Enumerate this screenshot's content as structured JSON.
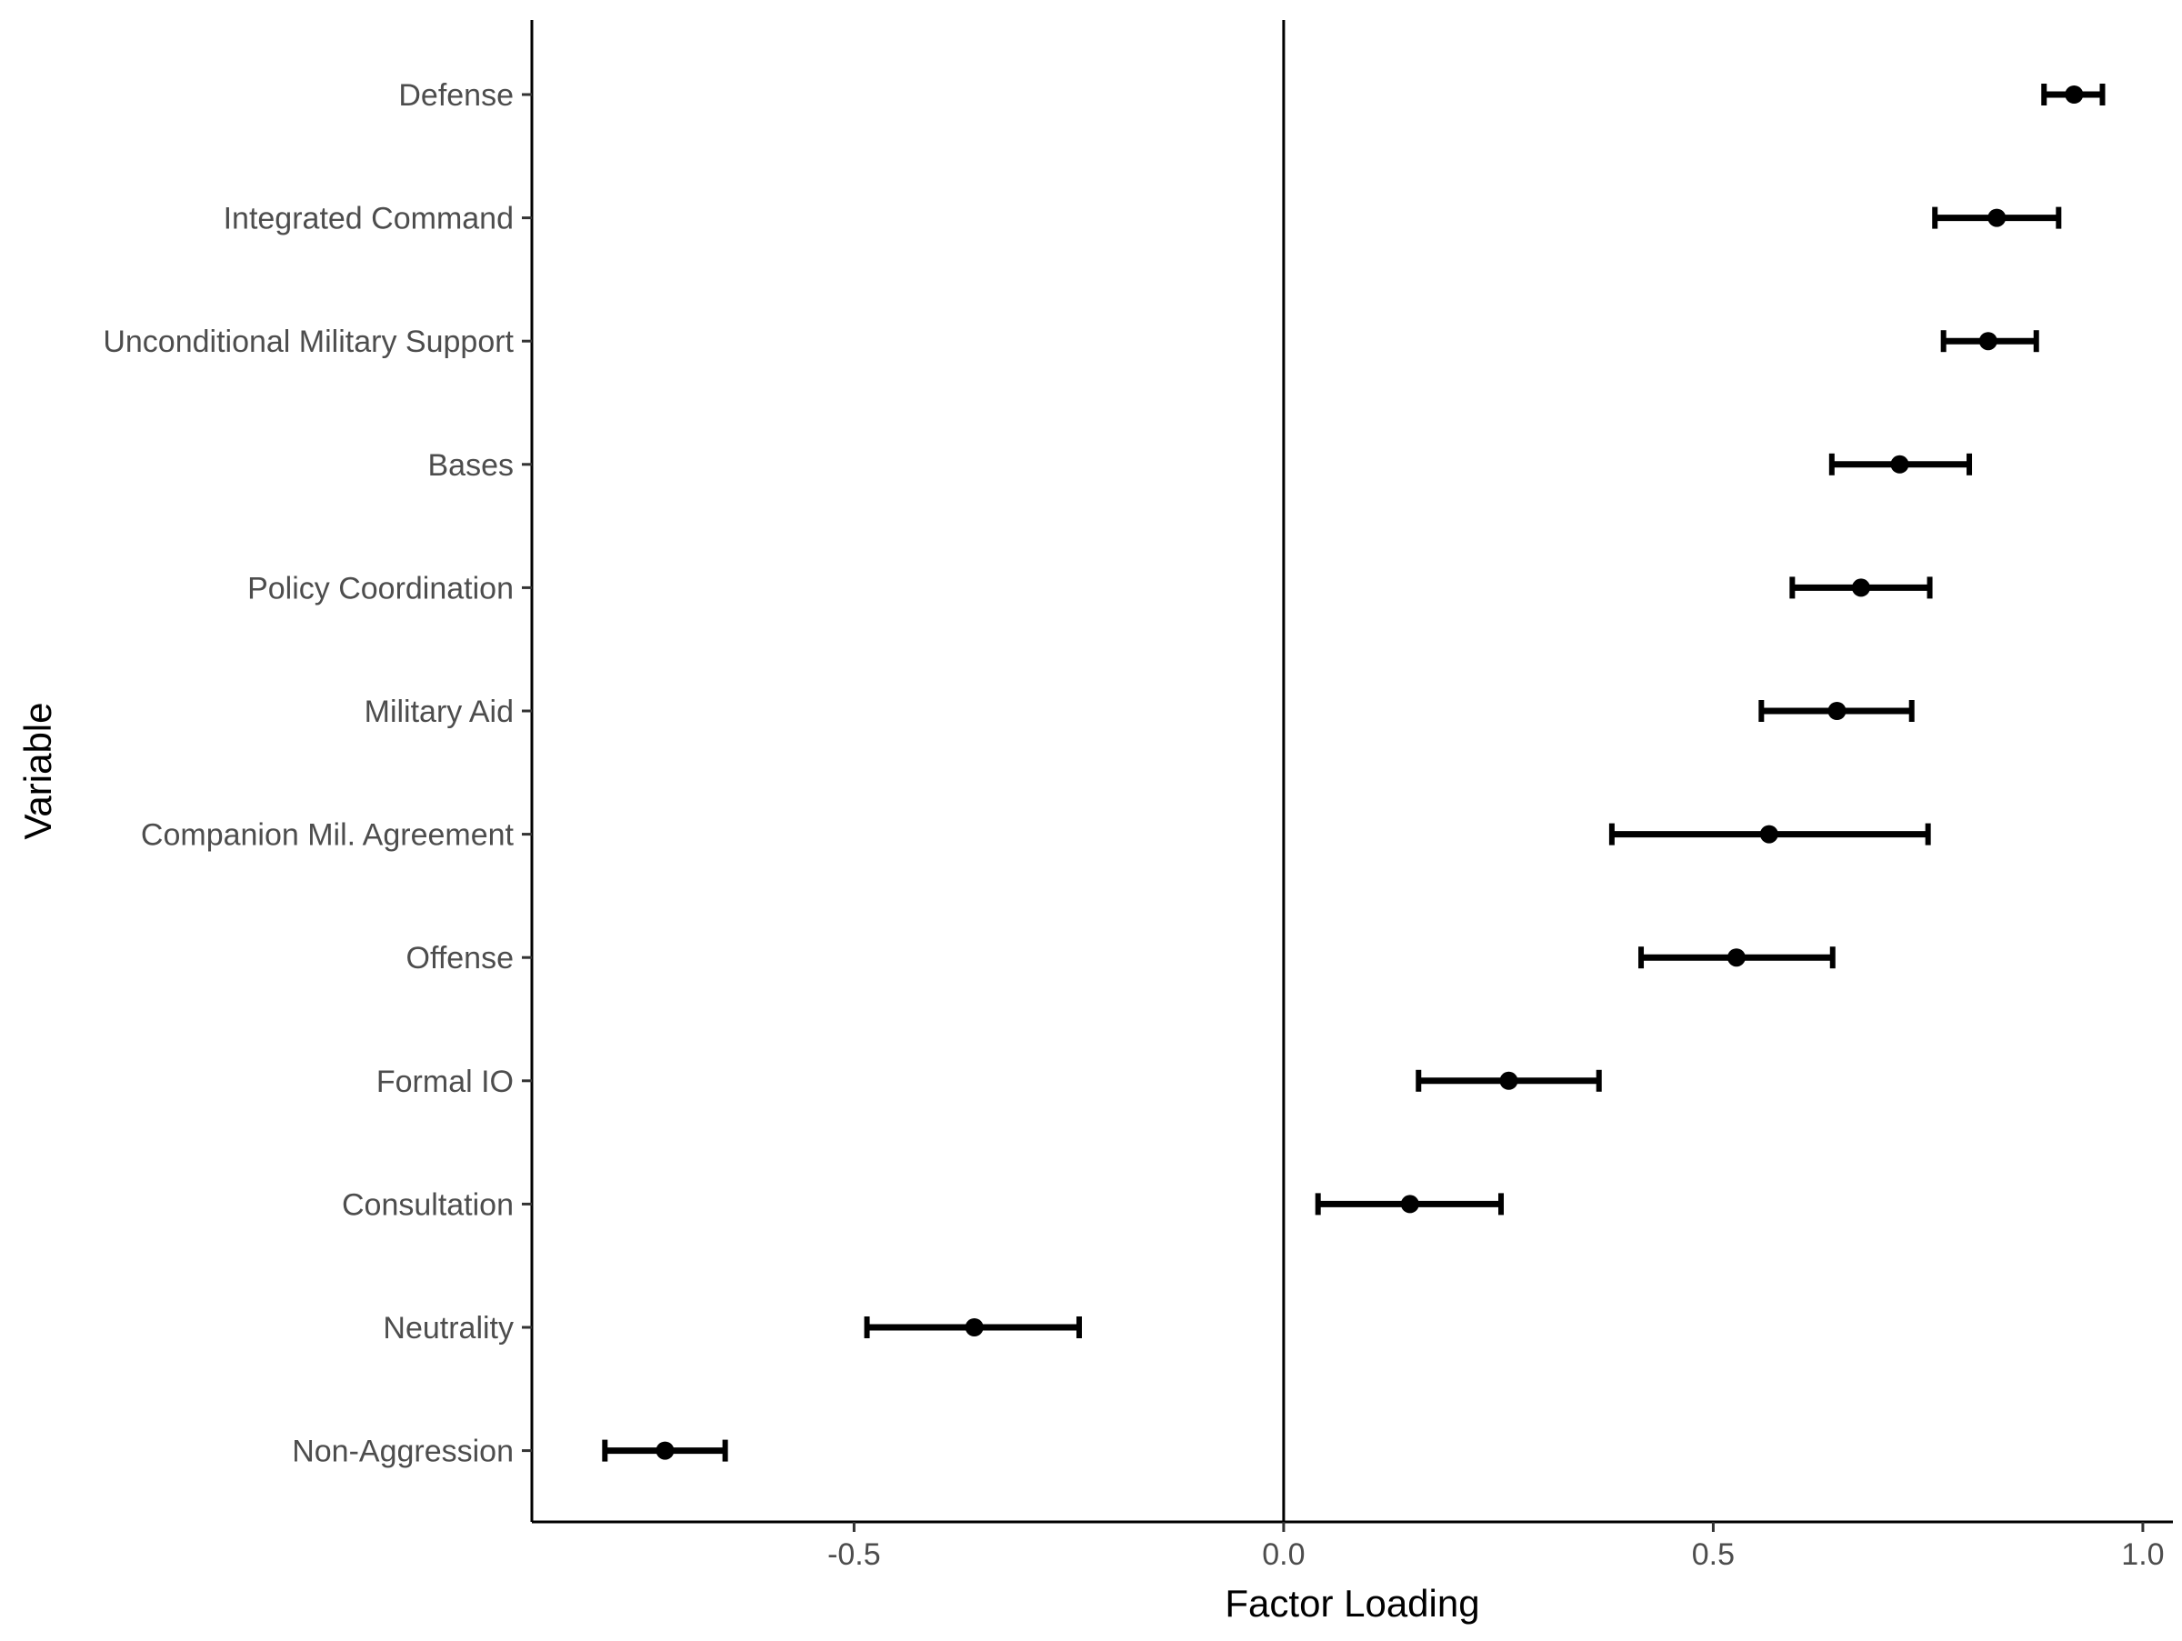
{
  "chart_data": {
    "type": "scatter",
    "xlabel": "Factor Loading",
    "ylabel": "Variable",
    "xlim": [
      -0.875,
      1.035
    ],
    "x_ticks": [
      -0.5,
      0.0,
      0.5,
      1.0
    ],
    "x_tick_labels": [
      "-0.5",
      "0.0",
      "0.5",
      "1.0"
    ],
    "reference_line_x": 0,
    "grid": false,
    "color": "#000000",
    "categories": [
      "Defense",
      "Integrated Command",
      "Unconditional Military Support",
      "Bases",
      "Policy Coordination",
      "Military Aid",
      "Companion Mil. Agreement",
      "Offense",
      "Formal IO",
      "Consultation",
      "Neutrality",
      "Non-Aggression"
    ],
    "points": [
      {
        "label": "Defense",
        "estimate": 0.92,
        "lower": 0.885,
        "upper": 0.953
      },
      {
        "label": "Integrated Command",
        "estimate": 0.83,
        "lower": 0.758,
        "upper": 0.902
      },
      {
        "label": "Unconditional Military Support",
        "estimate": 0.82,
        "lower": 0.768,
        "upper": 0.876
      },
      {
        "label": "Bases",
        "estimate": 0.717,
        "lower": 0.638,
        "upper": 0.798
      },
      {
        "label": "Policy Coordination",
        "estimate": 0.672,
        "lower": 0.592,
        "upper": 0.752
      },
      {
        "label": "Military Aid",
        "estimate": 0.644,
        "lower": 0.556,
        "upper": 0.731
      },
      {
        "label": "Companion Mil. Agreement",
        "estimate": 0.565,
        "lower": 0.382,
        "upper": 0.75
      },
      {
        "label": "Offense",
        "estimate": 0.527,
        "lower": 0.416,
        "upper": 0.639
      },
      {
        "label": "Formal IO",
        "estimate": 0.262,
        "lower": 0.157,
        "upper": 0.367
      },
      {
        "label": "Consultation",
        "estimate": 0.147,
        "lower": 0.04,
        "upper": 0.253
      },
      {
        "label": "Neutrality",
        "estimate": -0.36,
        "lower": -0.485,
        "upper": -0.238
      },
      {
        "label": "Non-Aggression",
        "estimate": -0.72,
        "lower": -0.79,
        "upper": -0.65
      }
    ]
  }
}
